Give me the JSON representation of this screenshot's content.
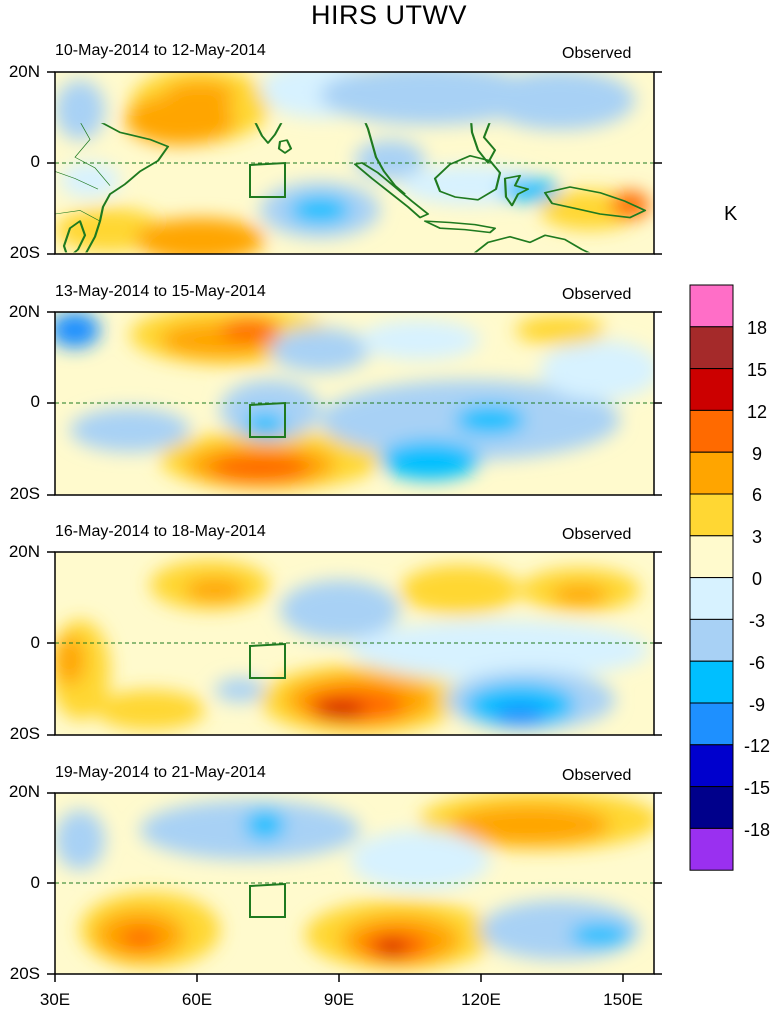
{
  "title": "HIRS UTWV",
  "observed_label": "Observed",
  "units": "K",
  "lat_labels": [
    "20N",
    "0",
    "20S"
  ],
  "lon_labels": [
    "30E",
    "60E",
    "90E",
    "120E",
    "150E"
  ],
  "panels": [
    {
      "period": "10-May-2014 to 12-May-2014"
    },
    {
      "period": "13-May-2014 to 15-May-2014"
    },
    {
      "period": "16-May-2014 to 18-May-2014"
    },
    {
      "period": "19-May-2014 to 21-May-2014"
    }
  ],
  "colorbar": {
    "labels": [
      "18",
      "15",
      "12",
      "9",
      "6",
      "3",
      "0",
      "-3",
      "-6",
      "-9",
      "-12",
      "-15",
      "-18"
    ],
    "colors": [
      "#ff6ec7",
      "#a52a2a",
      "#cc0000",
      "#ff6a00",
      "#ffa500",
      "#ffd733",
      "#fffacd",
      "#d7f2ff",
      "#a8d1f5",
      "#00bfff",
      "#1e90ff",
      "#0000cd",
      "#00008b",
      "#9a30f0"
    ]
  },
  "colors": {
    "coast": "#1f7a1f",
    "equator": "#1f7a1f"
  }
}
